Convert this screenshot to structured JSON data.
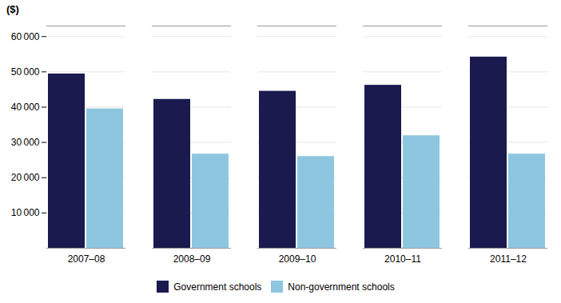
{
  "chart_data": {
    "type": "bar",
    "ylabel": "($)",
    "categories": [
      "2007–08",
      "2008–09",
      "2009–10",
      "2010–11",
      "2011–12"
    ],
    "series": [
      {
        "name": "Government schools",
        "color": "#1a1a4e",
        "values": [
          49400,
          42200,
          44500,
          46200,
          54200
        ]
      },
      {
        "name": "Non-government schools",
        "color": "#8ec6e0",
        "values": [
          39500,
          26700,
          26000,
          31900,
          26700
        ]
      }
    ],
    "ylim": [
      0,
      63000
    ],
    "yticks": [
      {
        "value": 10000,
        "label": "10 000"
      },
      {
        "value": 20000,
        "label": "20 000"
      },
      {
        "value": 30000,
        "label": "30 000"
      },
      {
        "value": 40000,
        "label": "40 000"
      },
      {
        "value": 50000,
        "label": "50 000"
      },
      {
        "value": 60000,
        "label": "60 000"
      }
    ],
    "grid": true,
    "legend": "bottom"
  }
}
